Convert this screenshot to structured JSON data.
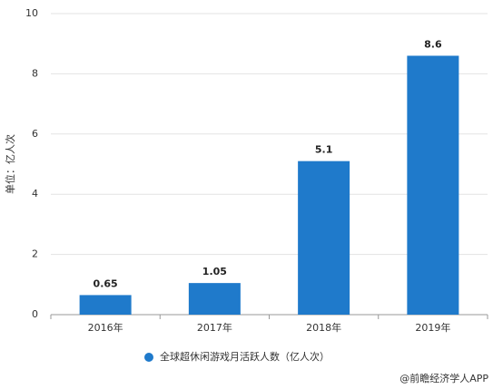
{
  "chart_data": {
    "type": "bar",
    "y_label": "单位：亿人次",
    "categories": [
      "2016年",
      "2017年",
      "2018年",
      "2019年"
    ],
    "series": [
      {
        "name": "全球超休闲游戏月活跃人数（亿人次）",
        "color": "#1f7acb",
        "values": [
          0.65,
          1.05,
          5.1,
          8.6
        ]
      }
    ],
    "ylim": [
      0,
      10
    ],
    "yticks": [
      0,
      2,
      4,
      6,
      8,
      10
    ],
    "grid": true,
    "legend": "bottom",
    "source": "@前瞻经济学人APP"
  }
}
